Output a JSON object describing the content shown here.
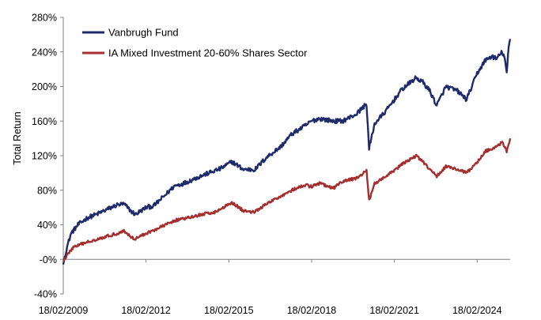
{
  "chart_data": {
    "type": "line",
    "ylabel": "Total Return",
    "xlabel": "",
    "ylim": [
      -40,
      280
    ],
    "y_ticks": [
      "-40%",
      "-0%",
      "40%",
      "80%",
      "120%",
      "160%",
      "200%",
      "240%",
      "280%"
    ],
    "y_tick_values": [
      -40,
      0,
      40,
      80,
      120,
      160,
      200,
      240,
      280
    ],
    "x_range": [
      "2009-02-18",
      "2025-04-30"
    ],
    "x_ticks": [
      "18/02/2009",
      "18/02/2012",
      "18/02/2015",
      "18/02/2018",
      "18/02/2021",
      "18/02/2024"
    ],
    "x_tick_dates": [
      "2009-02-18",
      "2012-02-18",
      "2015-02-18",
      "2018-02-18",
      "2021-02-18",
      "2024-02-18"
    ],
    "legend_position": "top-left",
    "series": [
      {
        "name": "Vanbrugh Fund",
        "color": "#1f2a6b",
        "points": [
          [
            "2009-02-18",
            -6
          ],
          [
            "2009-04-01",
            12
          ],
          [
            "2009-06-01",
            30
          ],
          [
            "2009-09-01",
            40
          ],
          [
            "2010-01-01",
            48
          ],
          [
            "2010-05-01",
            52
          ],
          [
            "2010-09-01",
            57
          ],
          [
            "2011-02-01",
            63
          ],
          [
            "2011-05-01",
            64
          ],
          [
            "2011-08-15",
            55
          ],
          [
            "2011-10-01",
            52
          ],
          [
            "2012-02-18",
            60
          ],
          [
            "2012-06-01",
            62
          ],
          [
            "2012-10-01",
            72
          ],
          [
            "2013-03-01",
            85
          ],
          [
            "2013-07-01",
            88
          ],
          [
            "2014-01-01",
            95
          ],
          [
            "2014-06-01",
            100
          ],
          [
            "2014-11-01",
            105
          ],
          [
            "2015-04-01",
            113
          ],
          [
            "2015-09-01",
            104
          ],
          [
            "2016-02-01",
            104
          ],
          [
            "2016-07-01",
            118
          ],
          [
            "2017-01-01",
            130
          ],
          [
            "2017-06-01",
            145
          ],
          [
            "2017-12-01",
            155
          ],
          [
            "2018-02-18",
            160
          ],
          [
            "2018-06-01",
            163
          ],
          [
            "2018-12-01",
            160
          ],
          [
            "2019-04-01",
            160
          ],
          [
            "2019-10-01",
            168
          ],
          [
            "2020-02-15",
            180
          ],
          [
            "2020-03-20",
            128
          ],
          [
            "2020-06-01",
            157
          ],
          [
            "2020-11-01",
            172
          ],
          [
            "2021-02-18",
            185
          ],
          [
            "2021-06-01",
            197
          ],
          [
            "2021-12-01",
            210
          ],
          [
            "2022-03-01",
            205
          ],
          [
            "2022-06-01",
            195
          ],
          [
            "2022-09-01",
            178
          ],
          [
            "2023-01-01",
            200
          ],
          [
            "2023-06-01",
            195
          ],
          [
            "2023-10-01",
            185
          ],
          [
            "2024-02-18",
            215
          ],
          [
            "2024-06-01",
            230
          ],
          [
            "2024-09-01",
            235
          ],
          [
            "2024-11-01",
            232
          ],
          [
            "2025-01-15",
            240
          ],
          [
            "2025-02-20",
            232
          ],
          [
            "2025-03-15",
            214
          ],
          [
            "2025-04-10",
            245
          ],
          [
            "2025-04-30",
            255
          ]
        ]
      },
      {
        "name": "IA Mixed Investment 20-60% Shares Sector",
        "color": "#a52f2f",
        "points": [
          [
            "2009-02-18",
            -3
          ],
          [
            "2009-04-01",
            4
          ],
          [
            "2009-07-01",
            14
          ],
          [
            "2010-01-01",
            20
          ],
          [
            "2010-06-01",
            24
          ],
          [
            "2011-02-01",
            30
          ],
          [
            "2011-05-01",
            33
          ],
          [
            "2011-08-15",
            25
          ],
          [
            "2011-10-01",
            24
          ],
          [
            "2012-02-18",
            30
          ],
          [
            "2012-08-01",
            36
          ],
          [
            "2013-03-01",
            45
          ],
          [
            "2013-09-01",
            48
          ],
          [
            "2014-03-01",
            52
          ],
          [
            "2014-09-01",
            55
          ],
          [
            "2015-04-01",
            66
          ],
          [
            "2015-09-01",
            56
          ],
          [
            "2016-02-01",
            55
          ],
          [
            "2016-07-01",
            64
          ],
          [
            "2017-01-01",
            73
          ],
          [
            "2017-06-01",
            80
          ],
          [
            "2017-12-01",
            86
          ],
          [
            "2018-02-18",
            84
          ],
          [
            "2018-06-01",
            88
          ],
          [
            "2018-12-01",
            82
          ],
          [
            "2019-04-01",
            90
          ],
          [
            "2019-10-01",
            94
          ],
          [
            "2020-02-15",
            102
          ],
          [
            "2020-03-20",
            68
          ],
          [
            "2020-06-01",
            88
          ],
          [
            "2020-11-01",
            96
          ],
          [
            "2021-02-18",
            103
          ],
          [
            "2021-06-01",
            110
          ],
          [
            "2021-12-01",
            120
          ],
          [
            "2022-03-01",
            113
          ],
          [
            "2022-06-01",
            104
          ],
          [
            "2022-09-01",
            96
          ],
          [
            "2023-01-01",
            108
          ],
          [
            "2023-06-01",
            104
          ],
          [
            "2023-10-01",
            100
          ],
          [
            "2024-02-18",
            112
          ],
          [
            "2024-06-01",
            125
          ],
          [
            "2024-09-01",
            128
          ],
          [
            "2025-01-15",
            135
          ],
          [
            "2025-03-15",
            125
          ],
          [
            "2025-04-10",
            132
          ],
          [
            "2025-04-30",
            140
          ]
        ]
      }
    ]
  }
}
